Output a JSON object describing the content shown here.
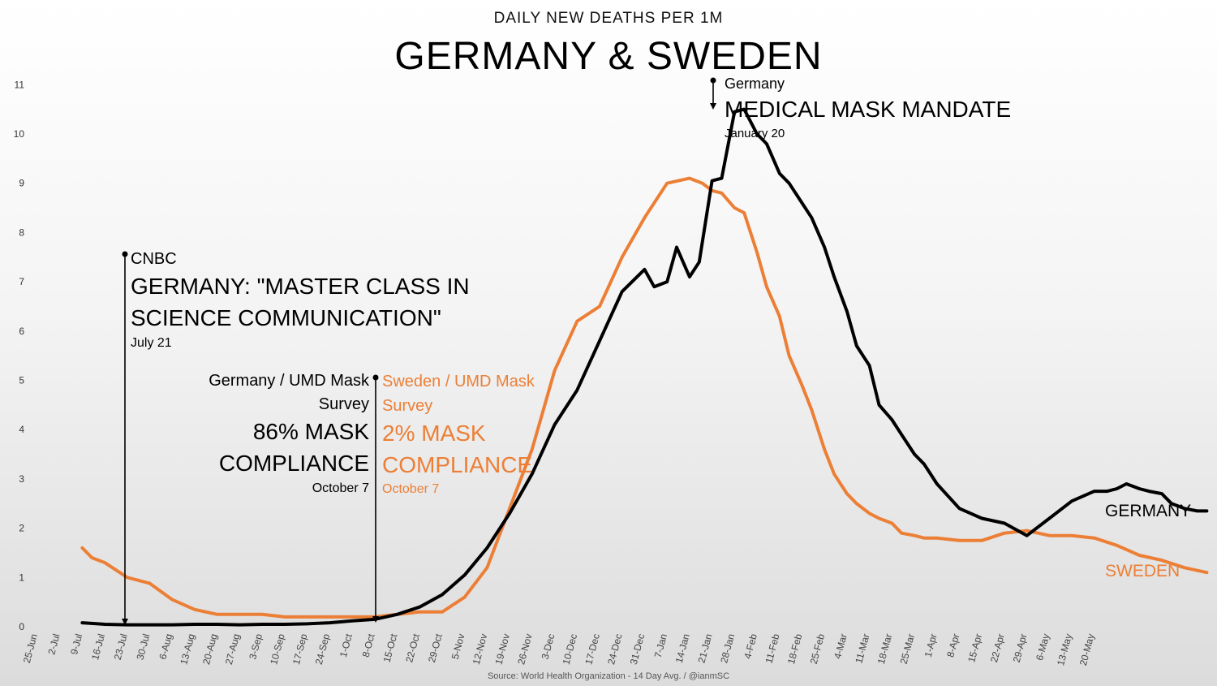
{
  "header": {
    "subtitle": "DAILY NEW DEATHS PER 1M",
    "title": "GERMANY & SWEDEN"
  },
  "source": "Source: World Health Organization - 14 Day Avg.  / @ianmSC",
  "colors": {
    "germany": "#000000",
    "sweden": "#ec7f36"
  },
  "annotations": {
    "cnbc": {
      "source": "CNBC",
      "headline_line1": "GERMANY: \"MASTER CLASS IN",
      "headline_line2": "SCIENCE COMMUNICATION\"",
      "date": "July 21"
    },
    "germany_survey": {
      "line1": "Germany / UMD Mask",
      "line2": "Survey",
      "headline_line1": "86% MASK",
      "headline_line2": "COMPLIANCE",
      "date": "October 7"
    },
    "sweden_survey": {
      "line1": "Sweden / UMD Mask",
      "line2": "Survey",
      "headline_line1": "2% MASK",
      "headline_line2": "COMPLIANCE",
      "date": "October 7"
    },
    "mandate": {
      "line1": "Germany",
      "headline": "MEDICAL MASK MANDATE",
      "date": "January 20"
    }
  },
  "chart_data": {
    "type": "line",
    "title": "GERMANY & SWEDEN",
    "subtitle": "DAILY NEW DEATHS PER 1M",
    "xlabel": "",
    "ylabel": "",
    "ylim": [
      0,
      11
    ],
    "yticks": [
      "0",
      "1",
      "2",
      "3",
      "4",
      "5",
      "6",
      "7",
      "8",
      "9",
      "10",
      "11"
    ],
    "xticks": [
      "25-Jun",
      "2-Jul",
      "9-Jul",
      "16-Jul",
      "23-Jul",
      "30-Jul",
      "6-Aug",
      "13-Aug",
      "20-Aug",
      "27-Aug",
      "3-Sep",
      "10-Sep",
      "17-Sep",
      "24-Sep",
      "1-Oct",
      "8-Oct",
      "15-Oct",
      "22-Oct",
      "29-Oct",
      "5-Nov",
      "12-Nov",
      "19-Nov",
      "26-Nov",
      "3-Dec",
      "10-Dec",
      "17-Dec",
      "24-Dec",
      "31-Dec",
      "7-Jan",
      "14-Jan",
      "21-Jan",
      "28-Jan",
      "4-Feb",
      "11-Feb",
      "18-Feb",
      "25-Feb",
      "4-Mar",
      "11-Mar",
      "18-Mar",
      "25-Mar",
      "1-Apr",
      "8-Apr",
      "15-Apr",
      "22-Apr",
      "29-Apr",
      "6-May",
      "13-May",
      "20-May"
    ],
    "x_unit": "days since 25-Jun",
    "series": [
      {
        "name": "GERMANY",
        "x": [
          14,
          21,
          28,
          35,
          42,
          49,
          56,
          63,
          70,
          77,
          84,
          91,
          98,
          105,
          112,
          119,
          126,
          133,
          140,
          147,
          154,
          161,
          168,
          175,
          182,
          189,
          192,
          196,
          199,
          203,
          206,
          210,
          213,
          217,
          220,
          224,
          227,
          231,
          234,
          238,
          241,
          245,
          248,
          252,
          255,
          259,
          262,
          266,
          269,
          273,
          276,
          280,
          287,
          294,
          301,
          308,
          315,
          322,
          329,
          333,
          336,
          339,
          343,
          346,
          350,
          353,
          357,
          361,
          364
        ],
        "values": [
          0.08,
          0.05,
          0.04,
          0.04,
          0.04,
          0.05,
          0.05,
          0.04,
          0.05,
          0.05,
          0.06,
          0.08,
          0.12,
          0.15,
          0.25,
          0.4,
          0.65,
          1.05,
          1.6,
          2.3,
          3.1,
          4.1,
          4.8,
          5.8,
          6.8,
          7.25,
          6.9,
          7.0,
          7.7,
          7.1,
          7.4,
          9.05,
          9.1,
          10.45,
          10.5,
          10.0,
          9.8,
          9.2,
          9.0,
          8.6,
          8.3,
          7.7,
          7.1,
          6.4,
          5.7,
          5.3,
          4.5,
          4.2,
          3.9,
          3.5,
          3.3,
          2.9,
          2.4,
          2.2,
          2.1,
          1.85,
          2.2,
          2.55,
          2.75,
          2.75,
          2.8,
          2.9,
          2.8,
          2.75,
          2.7,
          2.5,
          2.4,
          2.35,
          2.35
        ]
      },
      {
        "name": "SWEDEN",
        "x": [
          14,
          17,
          21,
          28,
          35,
          42,
          49,
          56,
          63,
          70,
          77,
          84,
          91,
          98,
          105,
          112,
          119,
          126,
          133,
          140,
          147,
          154,
          161,
          168,
          175,
          182,
          189,
          196,
          203,
          207,
          210,
          213,
          217,
          220,
          224,
          227,
          231,
          234,
          238,
          241,
          245,
          248,
          252,
          255,
          259,
          262,
          266,
          269,
          273,
          276,
          280,
          287,
          294,
          301,
          308,
          315,
          322,
          329,
          336,
          343,
          350,
          357,
          364
        ],
        "values": [
          1.6,
          1.4,
          1.3,
          1.0,
          0.88,
          0.55,
          0.35,
          0.25,
          0.25,
          0.25,
          0.2,
          0.2,
          0.2,
          0.2,
          0.2,
          0.25,
          0.3,
          0.3,
          0.6,
          1.2,
          2.4,
          3.6,
          5.2,
          6.2,
          6.5,
          7.5,
          8.3,
          9.0,
          9.1,
          9.0,
          8.85,
          8.8,
          8.5,
          8.4,
          7.6,
          6.9,
          6.3,
          5.5,
          4.9,
          4.4,
          3.6,
          3.1,
          2.7,
          2.5,
          2.3,
          2.2,
          2.1,
          1.9,
          1.85,
          1.8,
          1.8,
          1.75,
          1.75,
          1.9,
          1.95,
          1.85,
          1.85,
          1.8,
          1.65,
          1.45,
          1.35,
          1.2,
          1.1
        ]
      }
    ]
  }
}
